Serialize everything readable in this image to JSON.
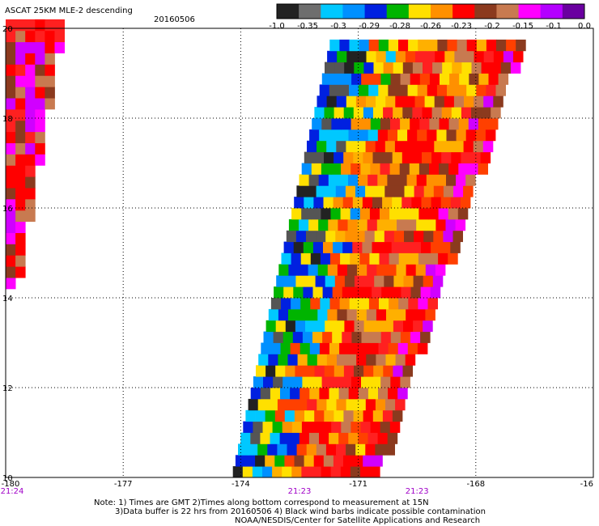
{
  "header": {
    "title": "ASCAT 25KM MLE-2 descending",
    "date": "20160506"
  },
  "colorbar": {
    "labels": [
      "-1.0",
      "-0.35",
      "-0.3",
      "-0.29",
      "-0.28",
      "-0.26",
      "-0.23",
      "-0.2",
      "-0.15",
      "-0.1",
      "0.0"
    ],
    "colors": [
      "#222222",
      "#6e6e6e",
      "#00c8ff",
      "#0090ff",
      "#0020e0",
      "#00b400",
      "#ffe000",
      "#ff9000",
      "#ff0000",
      "#8b3a1e",
      "#c87a50",
      "#ff00ff",
      "#b400ff",
      "#6a00a0"
    ]
  },
  "map": {
    "lon_range": [
      -180,
      -165
    ],
    "lat_range": [
      10,
      20
    ],
    "x_tick_labels": [
      "-180",
      "-177",
      "-174",
      "-171",
      "-168",
      "-16"
    ],
    "y_tick_labels": [
      "20",
      "18",
      "16",
      "14",
      "12",
      "10"
    ],
    "time_labels": [
      {
        "text": "21:24",
        "lon": -180
      },
      {
        "text": "21:23",
        "lon": -172.5
      },
      {
        "text": "21:23",
        "lon": -169.5
      }
    ],
    "time_color": "#a000c8"
  },
  "notes": {
    "line1": "Note: 1) Times are GMT 2)Times along bottom correspond to measurement at 15N",
    "line2": "3)Data buffer is 22 hrs from 20160506 4) Black wind barbs indicate possible contamination",
    "line3": "NOAA/NESDIS/Center for Satellite Applications and Research"
  }
}
